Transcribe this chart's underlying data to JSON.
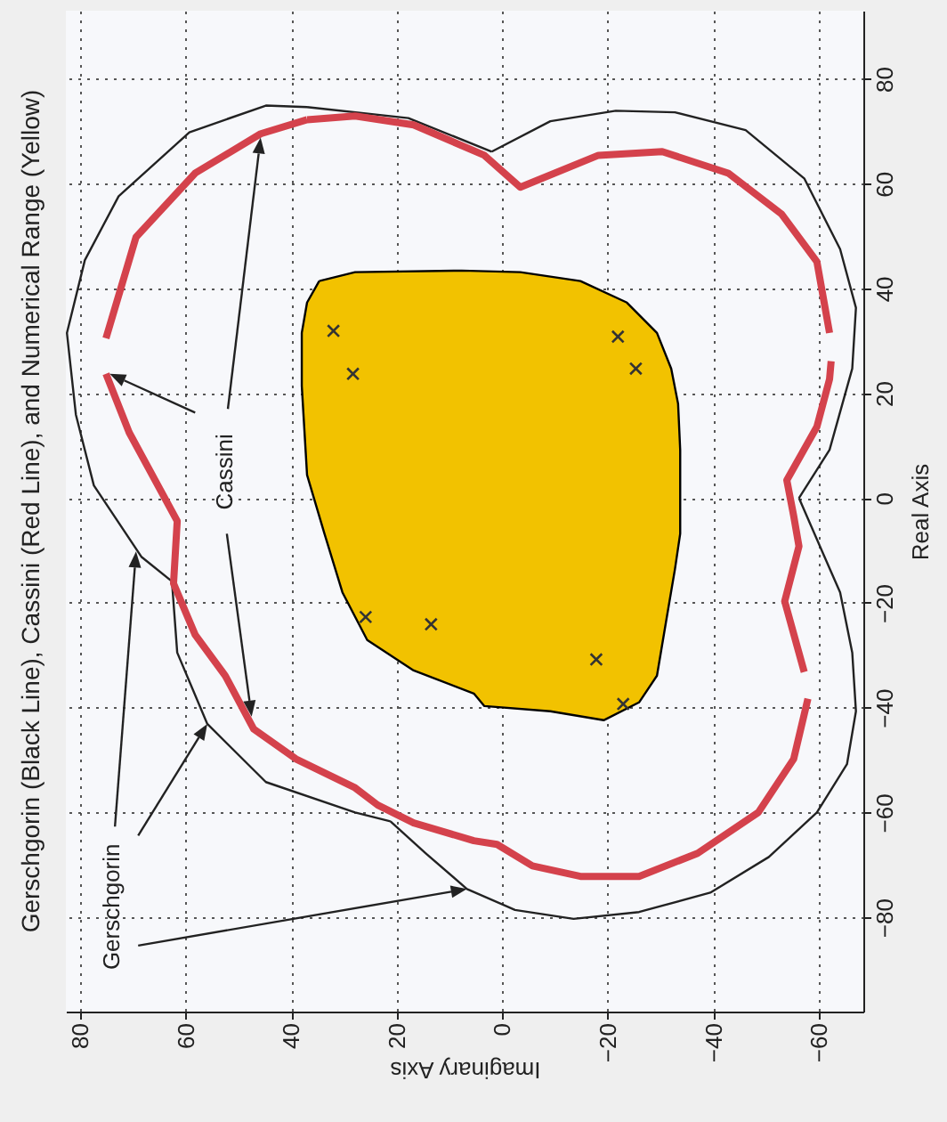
{
  "chart_data": {
    "type": "line",
    "title": "Gerschgorin (Black Line), Cassini (Red Line), and Numerical Range (Yellow)",
    "xlabel": "Imaginary Axis",
    "ylabel": "Real Axis",
    "xlim": [
      82.7,
      -68.4
    ],
    "ylim": [
      -98,
      93
    ],
    "xticks": [
      80,
      60,
      40,
      20,
      0,
      -20,
      -40,
      -60
    ],
    "yticks": [
      -80,
      -60,
      -40,
      -20,
      0,
      20,
      40,
      60,
      80
    ],
    "grid": true,
    "annotations": [
      {
        "text": "Cassini",
        "x": 45.8,
        "y": 68.8
      },
      {
        "text": "Gerschgorin",
        "x": 69.4,
        "y": -10.2
      }
    ],
    "series": [
      {
        "type": "area",
        "color": "#f2c200",
        "x": [
          34.7,
          27.9,
          7.7,
          -3.4,
          -14.8,
          -23.6,
          -29.3,
          -32.0,
          -33.3,
          -33.7,
          -33.7,
          -32.7,
          -31.0,
          -29.3,
          -25.9,
          -19.2,
          -9.1,
          3.4,
          5.4,
          16.8,
          25.6,
          30.3,
          33.7,
          37.0,
          38.0,
          38.0,
          37.0,
          34.7
        ],
        "values": [
          41.4,
          43.1,
          43.4,
          43.1,
          41.4,
          37.3,
          31.5,
          24.7,
          18.0,
          9.2,
          -6.8,
          -13.6,
          -23.7,
          -33.9,
          -39.0,
          -42.4,
          -40.7,
          -39.7,
          -37.3,
          -32.9,
          -27.1,
          -18.0,
          -6.8,
          4.4,
          21.4,
          31.5,
          37.3,
          41.4
        ]
      },
      {
        "color": "#222222",
        "x": [
          37.0,
          44.8,
          59.3,
          72.7,
          79.1,
          82.5,
          80.8,
          77.4,
          68.4,
          62.6,
          null,
          62.6,
          61.6,
          55.9,
          44.8,
          27.9,
          21.2,
          null,
          21.2,
          14.5,
          6.7,
          -2.4,
          -13.5,
          -25.9,
          -39.4,
          -50.5,
          -59.6,
          -65.3,
          -67.0,
          -66.3,
          -64.0,
          -60.6,
          -56.2,
          null,
          -56.2,
          -62.0,
          -66.3,
          -67.0,
          -64.0,
          -57.2,
          -46.1,
          -32.7,
          -21.5,
          -9.1,
          2.0,
          null,
          2.0,
          17.8,
          37.0
        ],
        "values": [
          74.6,
          74.9,
          69.8,
          57.6,
          45.4,
          31.5,
          15.9,
          2.4,
          -11.2,
          -15.9,
          null,
          -15.9,
          -29.5,
          -43.1,
          -54.2,
          -60.0,
          -61.7,
          null,
          -61.7,
          -67.8,
          -74.6,
          -78.6,
          -80.3,
          -79.0,
          -75.3,
          -68.5,
          -60.0,
          -50.8,
          -40.7,
          -29.5,
          -18.0,
          -10.2,
          0,
          null,
          0,
          9.2,
          24.7,
          36.3,
          47.5,
          61.0,
          70.2,
          73.6,
          73.9,
          71.9,
          66.1,
          null,
          66.1,
          72.5,
          74.6
        ]
      },
      {
        "color": "#d4424c",
        "x": [
          37.0,
          45.8,
          58.2,
          69.4,
          75.1,
          null,
          75.1,
          70.7,
          61.6,
          62.3,
          58.2,
          52.5,
          47.1,
          39.1,
          27.9,
          23.6,
          16.8,
          5.4,
          1.0,
          -5.7,
          -14.8,
          -25.9,
          -37.0,
          -48.5,
          -55.2,
          -57.9,
          null,
          -57.2,
          -53.5,
          -56.2,
          -55.2,
          -53.9,
          -59.6,
          -62.0,
          -62.3,
          null,
          -62.0,
          -59.6,
          -52.9,
          -42.8,
          -30.3,
          -18.2,
          -3.4,
          3.4,
          16.8,
          27.9,
          37.0
        ],
        "values": [
          72.2,
          69.5,
          62.0,
          49.8,
          30.5,
          null,
          23.7,
          12.5,
          -4.4,
          -16.3,
          -26.1,
          -33.9,
          -44.1,
          -49.8,
          -55.3,
          -58.6,
          -62.0,
          -65.4,
          -66.1,
          -70.2,
          -72.2,
          -72.2,
          -67.8,
          -60.0,
          -49.8,
          -38.3,
          null,
          -33.2,
          -19.7,
          -9.2,
          -3.4,
          3.4,
          13.6,
          22.7,
          26.1,
          null,
          31.5,
          45.1,
          54.2,
          62.0,
          66.1,
          65.4,
          59.3,
          65.4,
          71.2,
          72.9,
          72.2
        ]
      },
      {
        "type": "scatter",
        "color": "#333333",
        "marker": "cross",
        "x": [
          32.0,
          28.3,
          -21.9,
          -25.3,
          25.9,
          13.5,
          -17.8,
          -22.9
        ],
        "values": [
          31.9,
          23.7,
          30.8,
          24.7,
          -22.7,
          -24.1,
          -30.8,
          -39.3
        ]
      }
    ]
  }
}
